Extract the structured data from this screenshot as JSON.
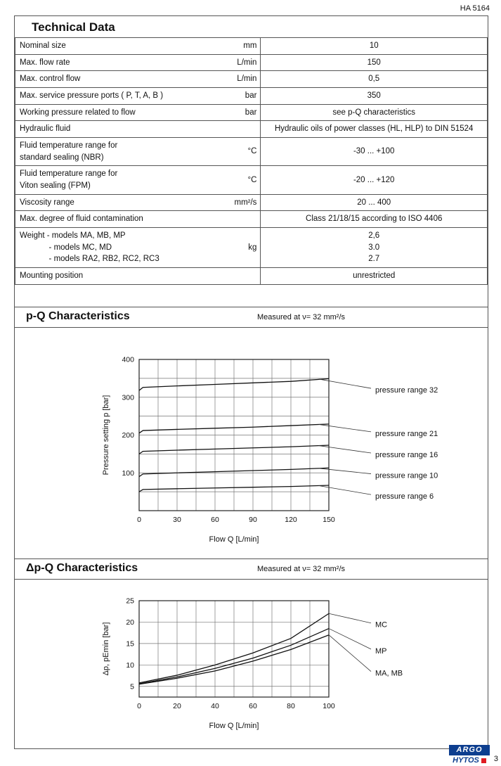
{
  "page": {
    "doc_number": "HA 5164",
    "page_number": "3",
    "brand": {
      "top": "ARGO",
      "bottom": "HYTOS",
      "blue": "#0d3e8f",
      "red": "#e01b22"
    }
  },
  "technical_data": {
    "title": "Technical Data",
    "rows": [
      {
        "param": "Nominal size",
        "unit": "mm",
        "value": "10"
      },
      {
        "param": "Max. flow rate",
        "unit": "L/min",
        "value": "150"
      },
      {
        "param": "Max. control flow",
        "unit": "L/min",
        "value": "0,5"
      },
      {
        "param": "Max. service pressure ports ( P, T, A, B )",
        "unit": "bar",
        "value": "350"
      },
      {
        "param": "Working pressure related to flow",
        "unit": "bar",
        "value": "see p-Q characteristics"
      },
      {
        "param": "Hydraulic fluid",
        "unit": "",
        "value": "Hydraulic oils of power classes (HL, HLP) to DIN 51524"
      },
      {
        "param": "Fluid temperature range for\nstandard sealing (NBR)",
        "unit": "°C",
        "value": "-30 ... +100"
      },
      {
        "param": "Fluid temperature range for\nViton sealing (FPM)",
        "unit": "°C",
        "value": "-20 ... +120"
      },
      {
        "param": "Viscosity range",
        "unit": "mm²/s",
        "value": "20 ... 400"
      },
      {
        "param": "Max. degree of fluid contamination",
        "unit": "",
        "value": "Class 21/18/15 according to ISO 4406"
      },
      {
        "param": "Weight - models MA, MB, MP\n             - models MC, MD\n             - models RA2, RB2, RC2, RC3",
        "unit": "kg",
        "value": "2,6\n3.0\n2.7"
      },
      {
        "param": "Mounting position",
        "unit": "",
        "value": "unrestricted"
      }
    ]
  },
  "chart_data": [
    {
      "type": "line",
      "title": "p-Q Characteristics",
      "subtitle": "Measured at ν= 32 mm²/s",
      "xlabel": "Flow Q [L/min]",
      "ylabel": "Pressure setting p [bar]",
      "xlim": [
        0,
        150
      ],
      "ylim": [
        0,
        400
      ],
      "xticks": [
        0,
        30,
        60,
        90,
        120,
        150
      ],
      "yticks": [
        100,
        200,
        300,
        400
      ],
      "grid_x_step": 15,
      "grid_y_step": 50,
      "grid": true,
      "legend_position": "right-labels",
      "series": [
        {
          "name": "pressure range 32",
          "x": [
            0,
            3,
            30,
            60,
            90,
            120,
            150
          ],
          "y": [
            318,
            326,
            330,
            334,
            338,
            342,
            349
          ]
        },
        {
          "name": "pressure range 21",
          "x": [
            0,
            3,
            30,
            60,
            90,
            120,
            150
          ],
          "y": [
            205,
            212,
            215,
            218,
            221,
            225,
            229
          ]
        },
        {
          "name": "pressure range 16",
          "x": [
            0,
            3,
            30,
            60,
            90,
            120,
            150
          ],
          "y": [
            150,
            157,
            160,
            163,
            166,
            169,
            173
          ]
        },
        {
          "name": "pressure range 10",
          "x": [
            0,
            3,
            30,
            60,
            90,
            120,
            150
          ],
          "y": [
            90,
            97,
            100,
            103,
            106,
            109,
            113
          ]
        },
        {
          "name": "pressure range 6",
          "x": [
            0,
            3,
            30,
            60,
            90,
            120,
            150
          ],
          "y": [
            50,
            56,
            58,
            60,
            62,
            64,
            67
          ]
        }
      ],
      "labels": [
        {
          "text": "pressure range 32",
          "y": 318,
          "target": [
            142,
            348
          ]
        },
        {
          "text": "pressure range 21",
          "y": 203,
          "target": [
            142,
            228
          ]
        },
        {
          "text": "pressure range 16",
          "y": 147,
          "target": [
            142,
            172
          ]
        },
        {
          "text": "pressure range 10",
          "y": 92,
          "target": [
            142,
            112
          ]
        },
        {
          "text": "pressure range 6",
          "y": 37,
          "target": [
            142,
            66
          ]
        }
      ]
    },
    {
      "type": "line",
      "title": "Δp-Q Characteristics",
      "subtitle": "Measured at ν= 32 mm²/s",
      "xlabel": "Flow Q [L/min]",
      "ylabel": "Δp, pEmin [bar]",
      "xlim": [
        0,
        100
      ],
      "ylim": [
        2.5,
        25
      ],
      "xticks": [
        0,
        20,
        40,
        60,
        80,
        100
      ],
      "yticks": [
        5,
        10,
        15,
        20,
        25
      ],
      "grid_x_step": 10,
      "grid_y_step": 5,
      "grid": true,
      "legend_position": "right-labels",
      "series": [
        {
          "name": "MC",
          "x": [
            0,
            20,
            40,
            60,
            80,
            100
          ],
          "y": [
            5.8,
            7.6,
            10,
            12.8,
            16.2,
            22
          ]
        },
        {
          "name": "MP",
          "x": [
            0,
            20,
            40,
            60,
            80,
            100
          ],
          "y": [
            5.6,
            7.2,
            9.2,
            11.6,
            14.6,
            18.5
          ]
        },
        {
          "name": "MA, MB",
          "x": [
            0,
            20,
            40,
            60,
            80,
            100
          ],
          "y": [
            5.5,
            6.9,
            8.6,
            10.9,
            13.6,
            17
          ]
        }
      ],
      "labels": [
        {
          "text": "MC",
          "y": 19.3,
          "target": [
            100,
            22
          ]
        },
        {
          "text": "MP",
          "y": 13.2,
          "target": [
            100,
            18.5
          ]
        },
        {
          "text": "MA, MB",
          "y": 8,
          "target": [
            100,
            17
          ]
        }
      ]
    }
  ]
}
